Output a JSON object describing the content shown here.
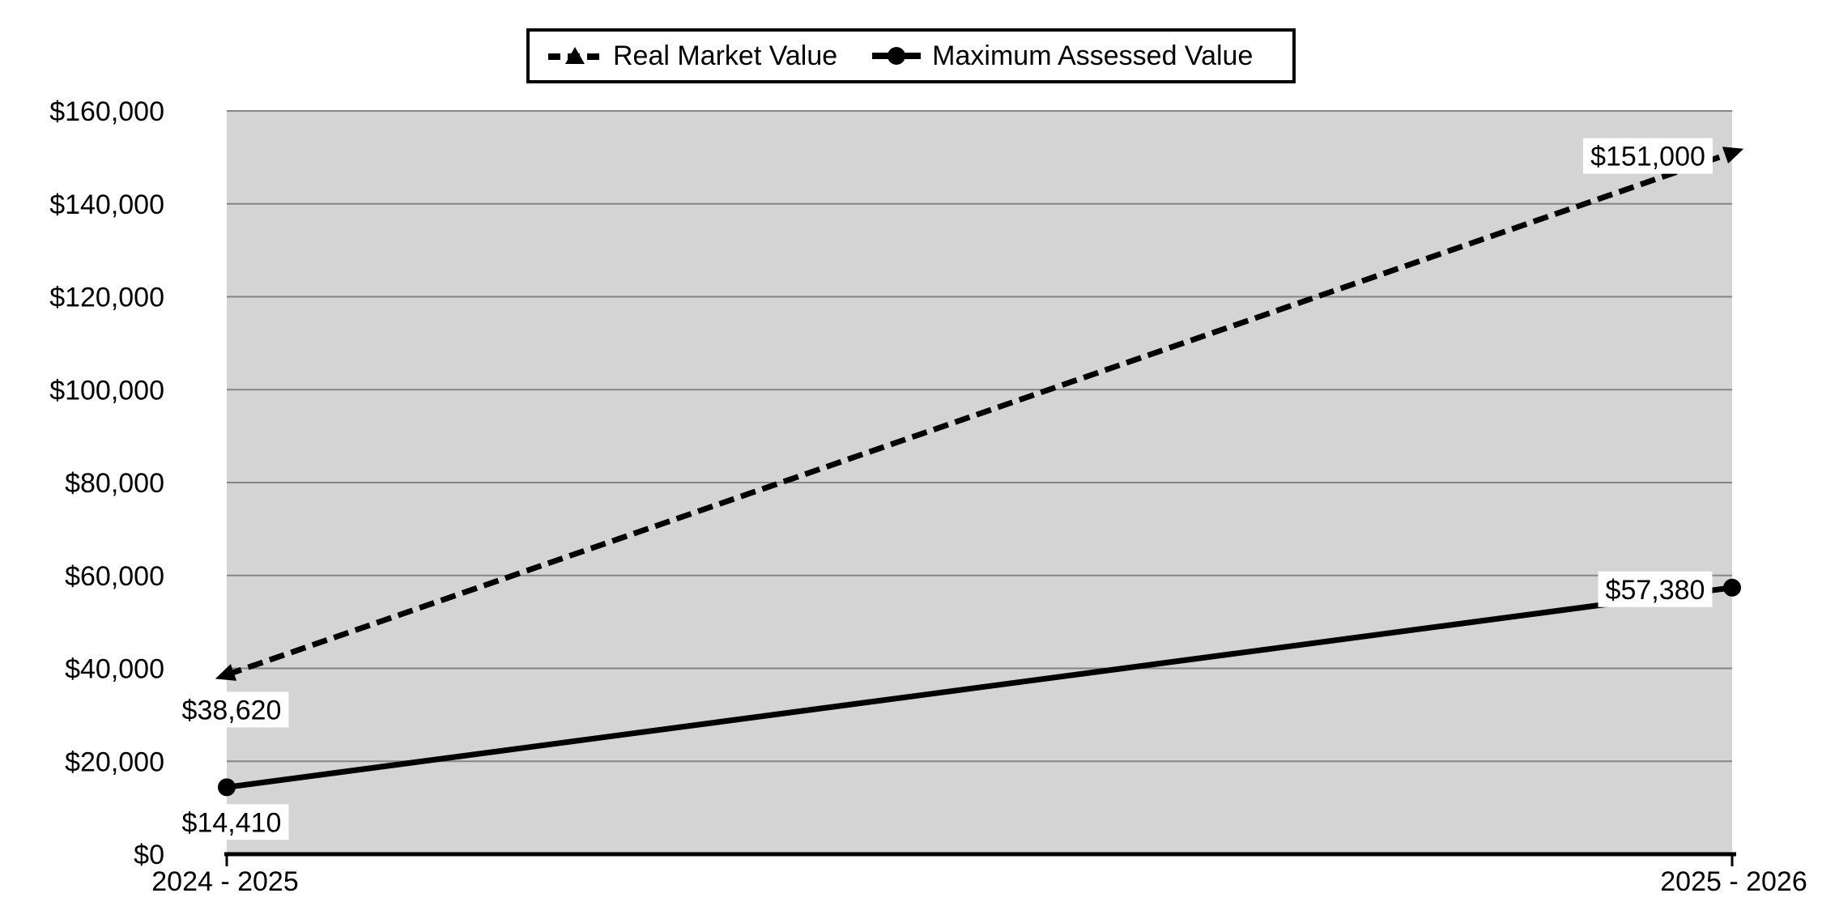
{
  "chart_data": {
    "type": "line",
    "categories": [
      "2024 - 2025",
      "2025 - 2026"
    ],
    "series": [
      {
        "name": "Real Market Value",
        "values": [
          38620,
          151000
        ],
        "labels": [
          "$38,620",
          "$151,000"
        ],
        "line_style": "dashed",
        "marker": "triangle"
      },
      {
        "name": "Maximum Assessed Value",
        "values": [
          14410,
          57380
        ],
        "labels": [
          "$14,410",
          "$57,380"
        ],
        "line_style": "solid",
        "marker": "circle"
      }
    ],
    "ylim": [
      0,
      160000
    ],
    "ytick_step": 20000,
    "ytick_labels": [
      "$0",
      "$20,000",
      "$40,000",
      "$60,000",
      "$80,000",
      "$100,000",
      "$120,000",
      "$140,000",
      "$160,000"
    ],
    "grid": true,
    "legend_position": "top",
    "colors": {
      "plot_background": "#d4d4d4",
      "gridline": "#858585",
      "series": "#000000",
      "label_background": "#ffffff",
      "axis_line": "#000000",
      "text": "#000000",
      "legend_border": "#000000"
    }
  }
}
